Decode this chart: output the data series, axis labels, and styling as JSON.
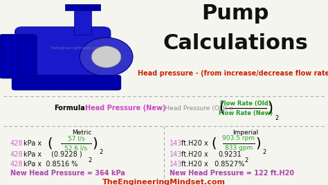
{
  "title_line1": "Pump",
  "title_line2": "Calculations",
  "subtitle": "Head pressure - (from increase/decrease flow rate)",
  "formula_label": "Formula:",
  "formula_part1": "Head Pressure (New)",
  "formula_part2": "= Head Pressure (Old) x",
  "formula_frac_num": "Flow Rate (New)",
  "formula_frac_den": "Flow Rate (Old)",
  "metric_label": "Metric",
  "imperial_label": "Imperial",
  "metric_428_color": "#cc66cc",
  "metric_green": "#22aa22",
  "metric_black": "#111111",
  "metric_purple": "#aa44aa",
  "imperial_143_color": "#cc66cc",
  "imperial_green": "#22aa22",
  "imperial_black": "#111111",
  "imperial_purple": "#aa44aa",
  "title_color": "#111111",
  "subtitle_color": "#cc2200",
  "formula_pink": "#cc44cc",
  "formula_gray": "#888888",
  "formula_green": "#229922",
  "website_color": "#cc2200",
  "website": "TheEngineeringMindset.com",
  "bg_color": "#f5f5f0",
  "pump_bg": "#e8e8e8"
}
